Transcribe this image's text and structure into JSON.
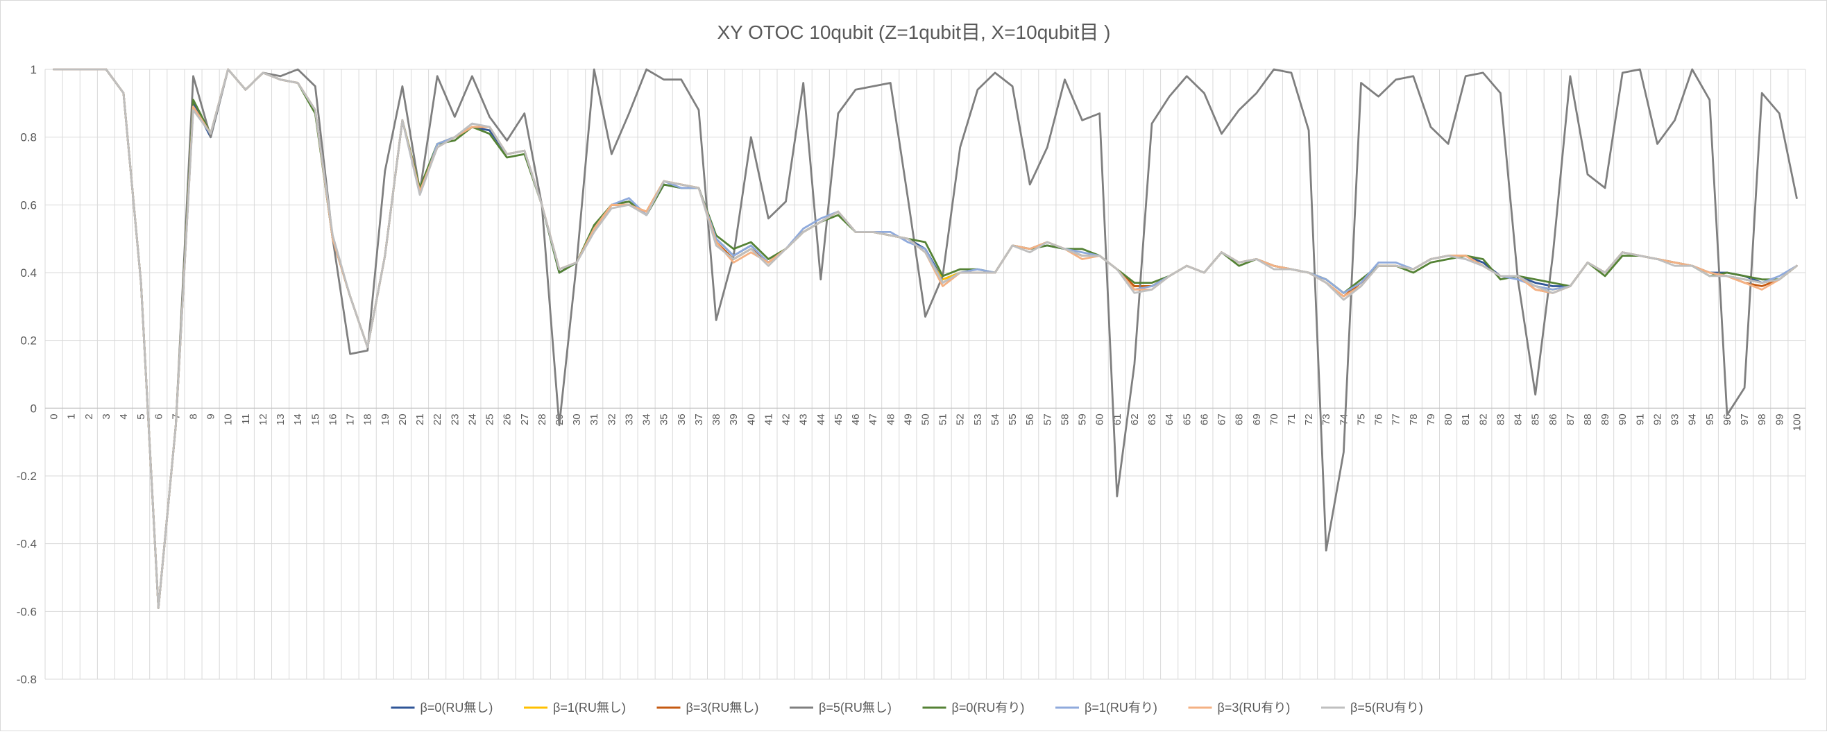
{
  "chart_data": {
    "type": "line",
    "title": "XY OTOC 10qubit (Z=1qubit目, X=10qubit目 )",
    "xlabel": "",
    "ylabel": "",
    "ylim": [
      -0.8,
      1
    ],
    "yticks": [
      "1",
      "0.8",
      "0.6",
      "0.4",
      "0.2",
      "0",
      "-0.2",
      "-0.4",
      "-0.6",
      "-0.8"
    ],
    "grid": true,
    "legend_position": "bottom",
    "x": [
      0,
      1,
      2,
      3,
      4,
      5,
      6,
      7,
      8,
      9,
      10,
      11,
      12,
      13,
      14,
      15,
      16,
      17,
      18,
      19,
      20,
      21,
      22,
      23,
      24,
      25,
      26,
      27,
      28,
      29,
      30,
      31,
      32,
      33,
      34,
      35,
      36,
      37,
      38,
      39,
      40,
      41,
      42,
      43,
      44,
      45,
      46,
      47,
      48,
      49,
      50,
      51,
      52,
      53,
      54,
      55,
      56,
      57,
      58,
      59,
      60,
      61,
      62,
      63,
      64,
      65,
      66,
      67,
      68,
      69,
      70,
      71,
      72,
      73,
      74,
      75,
      76,
      77,
      78,
      79,
      80,
      81,
      82,
      83,
      84,
      85,
      86,
      87,
      88,
      89,
      90,
      91,
      92,
      93,
      94,
      95,
      96,
      97,
      98,
      99,
      100
    ],
    "series": [
      {
        "name": "β=0(RU無し)",
        "color": "#2f5597",
        "values": [
          1,
          1,
          1,
          1,
          0.93,
          0.37,
          -0.59,
          -0.05,
          0.9,
          0.8,
          1,
          0.94,
          0.99,
          0.97,
          0.96,
          0.88,
          0.5,
          0.33,
          0.18,
          0.45,
          0.85,
          0.64,
          0.77,
          0.8,
          0.83,
          0.82,
          0.75,
          0.76,
          0.6,
          0.4,
          0.43,
          0.53,
          0.6,
          0.61,
          0.57,
          0.66,
          0.65,
          0.65,
          0.5,
          0.45,
          0.48,
          0.43,
          0.47,
          0.52,
          0.55,
          0.58,
          0.52,
          0.52,
          0.51,
          0.5,
          0.47,
          0.38,
          0.4,
          0.4,
          0.4,
          0.48,
          0.47,
          0.48,
          0.47,
          0.45,
          0.45,
          0.41,
          0.36,
          0.36,
          0.39,
          0.42,
          0.4,
          0.46,
          0.43,
          0.44,
          0.42,
          0.41,
          0.4,
          0.38,
          0.34,
          0.37,
          0.42,
          0.42,
          0.41,
          0.44,
          0.45,
          0.45,
          0.43,
          0.39,
          0.39,
          0.37,
          0.36,
          0.36,
          0.43,
          0.4,
          0.46,
          0.45,
          0.44,
          0.43,
          0.42,
          0.4,
          0.4,
          0.39,
          0.37,
          0.38,
          0.42
        ]
      },
      {
        "name": "β=1(RU無し)",
        "color": "#ffc000",
        "values": [
          1,
          1,
          1,
          1,
          0.93,
          0.37,
          -0.59,
          -0.05,
          0.89,
          0.81,
          1,
          0.94,
          0.99,
          0.97,
          0.96,
          0.88,
          0.5,
          0.33,
          0.18,
          0.45,
          0.85,
          0.64,
          0.78,
          0.8,
          0.83,
          0.83,
          0.75,
          0.76,
          0.6,
          0.41,
          0.43,
          0.53,
          0.6,
          0.6,
          0.58,
          0.67,
          0.66,
          0.65,
          0.49,
          0.44,
          0.47,
          0.43,
          0.47,
          0.52,
          0.55,
          0.58,
          0.52,
          0.52,
          0.51,
          0.5,
          0.46,
          0.38,
          0.4,
          0.4,
          0.4,
          0.48,
          0.47,
          0.49,
          0.47,
          0.45,
          0.45,
          0.41,
          0.36,
          0.36,
          0.39,
          0.42,
          0.4,
          0.46,
          0.43,
          0.44,
          0.42,
          0.41,
          0.4,
          0.38,
          0.34,
          0.37,
          0.42,
          0.42,
          0.41,
          0.44,
          0.45,
          0.45,
          0.42,
          0.39,
          0.39,
          0.36,
          0.35,
          0.36,
          0.43,
          0.4,
          0.46,
          0.45,
          0.44,
          0.43,
          0.42,
          0.4,
          0.39,
          0.38,
          0.37,
          0.38,
          0.42
        ]
      },
      {
        "name": "β=3(RU無し)",
        "color": "#c55a11",
        "values": [
          1,
          1,
          1,
          1,
          0.93,
          0.37,
          -0.59,
          -0.05,
          0.89,
          0.81,
          1,
          0.94,
          0.99,
          0.97,
          0.96,
          0.88,
          0.5,
          0.33,
          0.18,
          0.45,
          0.85,
          0.64,
          0.77,
          0.8,
          0.83,
          0.83,
          0.75,
          0.76,
          0.6,
          0.41,
          0.43,
          0.53,
          0.6,
          0.6,
          0.58,
          0.67,
          0.66,
          0.65,
          0.49,
          0.44,
          0.47,
          0.43,
          0.47,
          0.52,
          0.55,
          0.58,
          0.52,
          0.52,
          0.51,
          0.5,
          0.46,
          0.37,
          0.4,
          0.4,
          0.4,
          0.48,
          0.47,
          0.49,
          0.47,
          0.45,
          0.45,
          0.41,
          0.36,
          0.36,
          0.39,
          0.42,
          0.4,
          0.46,
          0.43,
          0.44,
          0.42,
          0.41,
          0.4,
          0.37,
          0.33,
          0.37,
          0.42,
          0.42,
          0.41,
          0.44,
          0.45,
          0.45,
          0.42,
          0.39,
          0.39,
          0.35,
          0.34,
          0.36,
          0.43,
          0.4,
          0.46,
          0.45,
          0.44,
          0.43,
          0.42,
          0.4,
          0.39,
          0.37,
          0.36,
          0.38,
          0.42
        ]
      },
      {
        "name": "β=5(RU無し)",
        "color": "#7f7f7f",
        "values": [
          1,
          1,
          1,
          1,
          0.93,
          0.37,
          -0.59,
          -0.05,
          0.98,
          0.8,
          1,
          0.94,
          0.99,
          0.98,
          1,
          0.95,
          0.5,
          0.16,
          0.17,
          0.7,
          0.95,
          0.64,
          0.98,
          0.86,
          0.98,
          0.86,
          0.79,
          0.87,
          0.6,
          -0.05,
          0.43,
          1,
          0.75,
          0.87,
          1,
          0.97,
          0.97,
          0.88,
          0.26,
          0.45,
          0.8,
          0.56,
          0.61,
          0.96,
          0.38,
          0.87,
          0.94,
          0.95,
          0.96,
          0.62,
          0.27,
          0.39,
          0.77,
          0.94,
          0.99,
          0.95,
          0.66,
          0.77,
          0.97,
          0.85,
          0.87,
          -0.26,
          0.13,
          0.84,
          0.92,
          0.98,
          0.93,
          0.81,
          0.88,
          0.93,
          1,
          0.99,
          0.82,
          -0.42,
          -0.13,
          0.96,
          0.92,
          0.97,
          0.98,
          0.83,
          0.78,
          0.98,
          0.99,
          0.93,
          0.38,
          0.04,
          0.45,
          0.98,
          0.69,
          0.65,
          0.99,
          1,
          0.78,
          0.85,
          1,
          0.91,
          -0.02,
          0.06,
          0.93,
          0.87,
          0.62
        ]
      },
      {
        "name": "β=0(RU有り)",
        "color": "#548235",
        "values": [
          1,
          1,
          1,
          1,
          0.93,
          0.37,
          -0.59,
          -0.05,
          0.91,
          0.81,
          1,
          0.94,
          0.99,
          0.97,
          0.96,
          0.87,
          0.5,
          0.33,
          0.18,
          0.45,
          0.85,
          0.65,
          0.78,
          0.79,
          0.83,
          0.81,
          0.74,
          0.75,
          0.6,
          0.4,
          0.43,
          0.54,
          0.6,
          0.61,
          0.57,
          0.66,
          0.65,
          0.65,
          0.51,
          0.47,
          0.49,
          0.44,
          0.47,
          0.52,
          0.55,
          0.57,
          0.52,
          0.52,
          0.51,
          0.5,
          0.49,
          0.39,
          0.41,
          0.41,
          0.4,
          0.48,
          0.47,
          0.48,
          0.47,
          0.47,
          0.45,
          0.41,
          0.37,
          0.37,
          0.39,
          0.42,
          0.4,
          0.46,
          0.42,
          0.44,
          0.42,
          0.41,
          0.4,
          0.38,
          0.34,
          0.38,
          0.42,
          0.42,
          0.4,
          0.43,
          0.44,
          0.45,
          0.44,
          0.38,
          0.39,
          0.38,
          0.37,
          0.36,
          0.43,
          0.39,
          0.45,
          0.45,
          0.44,
          0.43,
          0.42,
          0.39,
          0.4,
          0.39,
          0.38,
          0.38,
          0.42
        ]
      },
      {
        "name": "β=1(RU有り)",
        "color": "#8faadc",
        "values": [
          1,
          1,
          1,
          1,
          0.93,
          0.37,
          -0.59,
          -0.05,
          0.89,
          0.81,
          1,
          0.94,
          0.99,
          0.97,
          0.96,
          0.88,
          0.5,
          0.33,
          0.18,
          0.45,
          0.85,
          0.63,
          0.78,
          0.8,
          0.84,
          0.83,
          0.75,
          0.76,
          0.6,
          0.41,
          0.43,
          0.53,
          0.6,
          0.62,
          0.57,
          0.67,
          0.65,
          0.65,
          0.5,
          0.45,
          0.48,
          0.43,
          0.47,
          0.53,
          0.56,
          0.58,
          0.52,
          0.52,
          0.52,
          0.49,
          0.47,
          0.37,
          0.4,
          0.41,
          0.4,
          0.48,
          0.47,
          0.49,
          0.47,
          0.46,
          0.45,
          0.41,
          0.35,
          0.36,
          0.39,
          0.42,
          0.4,
          0.46,
          0.43,
          0.44,
          0.42,
          0.41,
          0.4,
          0.38,
          0.34,
          0.37,
          0.43,
          0.43,
          0.41,
          0.44,
          0.45,
          0.44,
          0.42,
          0.39,
          0.38,
          0.36,
          0.35,
          0.36,
          0.43,
          0.4,
          0.46,
          0.45,
          0.44,
          0.43,
          0.42,
          0.4,
          0.39,
          0.38,
          0.37,
          0.39,
          0.42
        ]
      },
      {
        "name": "β=3(RU有り)",
        "color": "#f4b183",
        "values": [
          1,
          1,
          1,
          1,
          0.93,
          0.37,
          -0.59,
          -0.05,
          0.89,
          0.81,
          1,
          0.94,
          0.99,
          0.97,
          0.96,
          0.88,
          0.5,
          0.33,
          0.18,
          0.45,
          0.85,
          0.64,
          0.77,
          0.8,
          0.83,
          0.83,
          0.75,
          0.76,
          0.6,
          0.41,
          0.43,
          0.53,
          0.6,
          0.6,
          0.58,
          0.67,
          0.66,
          0.65,
          0.49,
          0.43,
          0.46,
          0.43,
          0.47,
          0.52,
          0.55,
          0.58,
          0.52,
          0.52,
          0.51,
          0.5,
          0.46,
          0.36,
          0.4,
          0.4,
          0.4,
          0.48,
          0.47,
          0.49,
          0.47,
          0.44,
          0.45,
          0.41,
          0.35,
          0.35,
          0.39,
          0.42,
          0.4,
          0.46,
          0.43,
          0.44,
          0.42,
          0.41,
          0.4,
          0.37,
          0.33,
          0.36,
          0.42,
          0.42,
          0.41,
          0.44,
          0.45,
          0.45,
          0.42,
          0.39,
          0.39,
          0.35,
          0.34,
          0.36,
          0.43,
          0.4,
          0.46,
          0.45,
          0.44,
          0.43,
          0.42,
          0.4,
          0.39,
          0.37,
          0.35,
          0.38,
          0.42
        ]
      },
      {
        "name": "β=5(RU有り)",
        "color": "#bfbfbf",
        "values": [
          1,
          1,
          1,
          1,
          0.93,
          0.37,
          -0.59,
          -0.05,
          0.88,
          0.81,
          1,
          0.94,
          0.99,
          0.97,
          0.96,
          0.88,
          0.51,
          0.33,
          0.18,
          0.45,
          0.85,
          0.63,
          0.77,
          0.8,
          0.84,
          0.83,
          0.75,
          0.76,
          0.6,
          0.41,
          0.43,
          0.52,
          0.59,
          0.6,
          0.57,
          0.67,
          0.66,
          0.65,
          0.48,
          0.44,
          0.47,
          0.42,
          0.47,
          0.52,
          0.55,
          0.58,
          0.52,
          0.52,
          0.51,
          0.5,
          0.46,
          0.37,
          0.4,
          0.4,
          0.4,
          0.48,
          0.46,
          0.49,
          0.47,
          0.45,
          0.45,
          0.41,
          0.34,
          0.35,
          0.39,
          0.42,
          0.4,
          0.46,
          0.43,
          0.44,
          0.41,
          0.41,
          0.4,
          0.37,
          0.32,
          0.36,
          0.42,
          0.42,
          0.41,
          0.44,
          0.45,
          0.44,
          0.42,
          0.39,
          0.39,
          0.36,
          0.34,
          0.36,
          0.43,
          0.4,
          0.46,
          0.45,
          0.44,
          0.42,
          0.42,
          0.39,
          0.39,
          0.38,
          0.37,
          0.38,
          0.42
        ]
      }
    ]
  }
}
